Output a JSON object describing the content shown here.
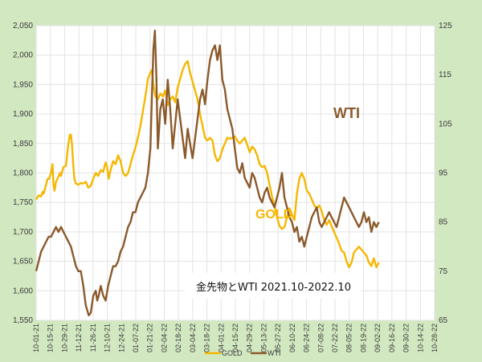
{
  "chart_data": {
    "type": "line",
    "title": "金先物とWTI 2021.10-2022.10",
    "annotations": {
      "wti": "WTI",
      "gold": "GOLD"
    },
    "x_tick_labels": [
      "10-01-21",
      "10-15-21",
      "10-29-21",
      "11-12-21",
      "11-26-21",
      "12-10-21",
      "12-24-21",
      "01-07-22",
      "01-21-22",
      "02-04-22",
      "02-18-22",
      "03-04-22",
      "03-18-22",
      "04-01-22",
      "04-15-22",
      "04-29-22",
      "05-13-22",
      "05-27-22",
      "06-10-22",
      "06-24-22",
      "07-08-22",
      "07-22-22",
      "08-05-22",
      "08-19-22",
      "09-02-22",
      "09-16-22",
      "09-30-22",
      "10-14-22",
      "10-28-22"
    ],
    "y_left": {
      "ylim": [
        1550,
        2050
      ],
      "ticks": [
        "1,550",
        "1,600",
        "1,650",
        "1,700",
        "1,750",
        "1,800",
        "1,850",
        "1,900",
        "1,950",
        "2,000",
        "2,050"
      ]
    },
    "y_right": {
      "ylim": [
        65,
        125
      ],
      "ticks": [
        "65",
        "75",
        "85",
        "95",
        "105",
        "115",
        "125"
      ]
    },
    "grid": true,
    "legend_position": "bottom",
    "series": [
      {
        "name": "GOLD",
        "axis": "left",
        "color": "#f5b700",
        "points": [
          [
            0,
            1755
          ],
          [
            0.5,
            1762
          ],
          [
            1,
            1760
          ],
          [
            1.3,
            1768
          ],
          [
            1.5,
            1765
          ],
          [
            2,
            1780
          ],
          [
            2.3,
            1790
          ],
          [
            2.6,
            1790
          ],
          [
            3,
            1800
          ],
          [
            3.3,
            1815
          ],
          [
            3.5,
            1780
          ],
          [
            3.7,
            1770
          ],
          [
            4,
            1785
          ],
          [
            4.4,
            1792
          ],
          [
            4.8,
            1800
          ],
          [
            5,
            1795
          ],
          [
            5.5,
            1810
          ],
          [
            6,
            1812
          ],
          [
            6.3,
            1835
          ],
          [
            6.5,
            1850
          ],
          [
            6.8,
            1865
          ],
          [
            7,
            1865
          ],
          [
            7.2,
            1850
          ],
          [
            7.5,
            1810
          ],
          [
            7.7,
            1790
          ],
          [
            8,
            1782
          ],
          [
            8.5,
            1780
          ],
          [
            9,
            1783
          ],
          [
            9.5,
            1782
          ],
          [
            10,
            1785
          ],
          [
            10.5,
            1775
          ],
          [
            11,
            1778
          ],
          [
            11.5,
            1790
          ],
          [
            12,
            1800
          ],
          [
            12.5,
            1795
          ],
          [
            13,
            1805
          ],
          [
            13.5,
            1802
          ],
          [
            14,
            1818
          ],
          [
            14.3,
            1810
          ],
          [
            14.6,
            1790
          ],
          [
            15,
            1805
          ],
          [
            15.5,
            1820
          ],
          [
            16,
            1815
          ],
          [
            16.5,
            1830
          ],
          [
            17,
            1820
          ],
          [
            17.5,
            1800
          ],
          [
            18,
            1795
          ],
          [
            18.5,
            1800
          ],
          [
            19,
            1815
          ],
          [
            19.5,
            1830
          ],
          [
            20,
            1843
          ],
          [
            20.5,
            1860
          ],
          [
            21,
            1880
          ],
          [
            21.5,
            1905
          ],
          [
            22,
            1930
          ],
          [
            22.5,
            1960
          ],
          [
            23,
            1970
          ],
          [
            23.3,
            1975
          ],
          [
            23.6,
            1950
          ],
          [
            24,
            1930
          ],
          [
            24.5,
            1925
          ],
          [
            25,
            1935
          ],
          [
            25.5,
            1930
          ],
          [
            26,
            1940
          ],
          [
            26.5,
            1915
          ],
          [
            27,
            1925
          ],
          [
            27.5,
            1930
          ],
          [
            28,
            1920
          ],
          [
            28.5,
            1945
          ],
          [
            29,
            1960
          ],
          [
            29.5,
            1975
          ],
          [
            30,
            1985
          ],
          [
            30.5,
            1990
          ],
          [
            31,
            1970
          ],
          [
            31.5,
            1955
          ],
          [
            32,
            1940
          ],
          [
            32.5,
            1925
          ],
          [
            33,
            1900
          ],
          [
            33.5,
            1880
          ],
          [
            34,
            1860
          ],
          [
            34.5,
            1855
          ],
          [
            35,
            1860
          ],
          [
            35.5,
            1855
          ],
          [
            36,
            1830
          ],
          [
            36.5,
            1820
          ],
          [
            37,
            1825
          ],
          [
            37.5,
            1840
          ],
          [
            38,
            1850
          ],
          [
            38.5,
            1860
          ],
          [
            39,
            1858
          ],
          [
            39.5,
            1860
          ],
          [
            40,
            1862
          ],
          [
            40.5,
            1855
          ],
          [
            41,
            1850
          ],
          [
            41.5,
            1855
          ],
          [
            42,
            1860
          ],
          [
            42.5,
            1848
          ],
          [
            43,
            1835
          ],
          [
            43.5,
            1845
          ],
          [
            44,
            1840
          ],
          [
            44.5,
            1830
          ],
          [
            45,
            1815
          ],
          [
            45.5,
            1810
          ],
          [
            46,
            1812
          ],
          [
            46.5,
            1800
          ],
          [
            47,
            1780
          ],
          [
            47.5,
            1760
          ],
          [
            48,
            1745
          ],
          [
            48.5,
            1725
          ],
          [
            49,
            1710
          ],
          [
            49.5,
            1705
          ],
          [
            50,
            1708
          ],
          [
            50.5,
            1725
          ],
          [
            51,
            1740
          ],
          [
            51.5,
            1730
          ],
          [
            52,
            1720
          ],
          [
            52.5,
            1765
          ],
          [
            53,
            1790
          ],
          [
            53.5,
            1800
          ],
          [
            54,
            1790
          ],
          [
            54.5,
            1770
          ],
          [
            55,
            1765
          ],
          [
            55.5,
            1755
          ],
          [
            56,
            1745
          ],
          [
            56.5,
            1740
          ],
          [
            57,
            1745
          ],
          [
            57.5,
            1735
          ],
          [
            58,
            1720
          ],
          [
            58.5,
            1712
          ],
          [
            59,
            1720
          ],
          [
            59.5,
            1710
          ],
          [
            60,
            1700
          ],
          [
            60.5,
            1690
          ],
          [
            61,
            1680
          ],
          [
            61.5,
            1668
          ],
          [
            62,
            1665
          ],
          [
            62.5,
            1650
          ],
          [
            63,
            1640
          ],
          [
            63.5,
            1648
          ],
          [
            64,
            1665
          ],
          [
            64.5,
            1670
          ],
          [
            65,
            1675
          ],
          [
            65.5,
            1670
          ],
          [
            66,
            1665
          ],
          [
            66.5,
            1660
          ],
          [
            67,
            1648
          ],
          [
            67.5,
            1642
          ],
          [
            68,
            1655
          ],
          [
            68.5,
            1640
          ],
          [
            69,
            1648
          ]
        ]
      },
      {
        "name": "WTI",
        "axis": "right",
        "color": "#8b5a2b",
        "points": [
          [
            0,
            75
          ],
          [
            0.5,
            77
          ],
          [
            1,
            79
          ],
          [
            1.5,
            80
          ],
          [
            2,
            81
          ],
          [
            2.5,
            82
          ],
          [
            3,
            82
          ],
          [
            3.5,
            83
          ],
          [
            4,
            84
          ],
          [
            4.5,
            83
          ],
          [
            5,
            84
          ],
          [
            5.5,
            83
          ],
          [
            6,
            82
          ],
          [
            6.5,
            81
          ],
          [
            7,
            80
          ],
          [
            7.5,
            78
          ],
          [
            8,
            76
          ],
          [
            8.5,
            75
          ],
          [
            9,
            75
          ],
          [
            9.5,
            72
          ],
          [
            10,
            68
          ],
          [
            10.3,
            67
          ],
          [
            10.6,
            66
          ],
          [
            11,
            66.5
          ],
          [
            11.5,
            70
          ],
          [
            12,
            71
          ],
          [
            12.3,
            69
          ],
          [
            12.6,
            70
          ],
          [
            13,
            72
          ],
          [
            13.5,
            70
          ],
          [
            14,
            69
          ],
          [
            14.5,
            72
          ],
          [
            15,
            74
          ],
          [
            15.5,
            76
          ],
          [
            16,
            76
          ],
          [
            16.5,
            77
          ],
          [
            17,
            79
          ],
          [
            17.5,
            80
          ],
          [
            18,
            82
          ],
          [
            18.5,
            84
          ],
          [
            19,
            85
          ],
          [
            19.5,
            87
          ],
          [
            20,
            87
          ],
          [
            20.5,
            89
          ],
          [
            21,
            90
          ],
          [
            21.5,
            91
          ],
          [
            22,
            92
          ],
          [
            22.5,
            95
          ],
          [
            23,
            100
          ],
          [
            23.3,
            110
          ],
          [
            23.6,
            120
          ],
          [
            23.9,
            124
          ],
          [
            24.2,
            115
          ],
          [
            24.5,
            100
          ],
          [
            25,
            108
          ],
          [
            25.5,
            110
          ],
          [
            26,
            105
          ],
          [
            26.5,
            114
          ],
          [
            27,
            108
          ],
          [
            27.5,
            100
          ],
          [
            28,
            105
          ],
          [
            28.5,
            110
          ],
          [
            29,
            106
          ],
          [
            29.5,
            102
          ],
          [
            30,
            98
          ],
          [
            30.5,
            104
          ],
          [
            31,
            101
          ],
          [
            31.5,
            98
          ],
          [
            32,
            102
          ],
          [
            32.5,
            106
          ],
          [
            33,
            110
          ],
          [
            33.5,
            112
          ],
          [
            34,
            109
          ],
          [
            34.5,
            114
          ],
          [
            35,
            118
          ],
          [
            35.5,
            120
          ],
          [
            36,
            121
          ],
          [
            36.5,
            118
          ],
          [
            37,
            121
          ],
          [
            37.5,
            114
          ],
          [
            38,
            112
          ],
          [
            38.5,
            108
          ],
          [
            39,
            106
          ],
          [
            39.5,
            104
          ],
          [
            40,
            100
          ],
          [
            40.5,
            96
          ],
          [
            41,
            95
          ],
          [
            41.5,
            97
          ],
          [
            42,
            94
          ],
          [
            42.5,
            93
          ],
          [
            43,
            92
          ],
          [
            43.5,
            95
          ],
          [
            44,
            94
          ],
          [
            44.5,
            92
          ],
          [
            45,
            90
          ],
          [
            45.5,
            89
          ],
          [
            46,
            91
          ],
          [
            46.5,
            92
          ],
          [
            47,
            90
          ],
          [
            47.5,
            89
          ],
          [
            48,
            88
          ],
          [
            48.5,
            90
          ],
          [
            49,
            92
          ],
          [
            49.5,
            95
          ],
          [
            50,
            90
          ],
          [
            50.5,
            88
          ],
          [
            51,
            86
          ],
          [
            51.5,
            85
          ],
          [
            52,
            83
          ],
          [
            52.5,
            84
          ],
          [
            53,
            81
          ],
          [
            53.5,
            82
          ],
          [
            54,
            80
          ],
          [
            54.5,
            82
          ],
          [
            55,
            84
          ],
          [
            55.5,
            86
          ],
          [
            56,
            87
          ],
          [
            56.5,
            88
          ],
          [
            57,
            85
          ],
          [
            57.5,
            84
          ],
          [
            58,
            85
          ],
          [
            58.5,
            86
          ],
          [
            59,
            87
          ],
          [
            59.5,
            86
          ],
          [
            60,
            85
          ],
          [
            60.5,
            84
          ],
          [
            61,
            86
          ],
          [
            61.5,
            88
          ],
          [
            62,
            90
          ],
          [
            62.5,
            89
          ],
          [
            63,
            88
          ],
          [
            63.5,
            87
          ],
          [
            64,
            86
          ],
          [
            64.5,
            85
          ],
          [
            65,
            84
          ],
          [
            65.5,
            85
          ],
          [
            66,
            87
          ],
          [
            66.5,
            85
          ],
          [
            67,
            86
          ],
          [
            67.5,
            83
          ],
          [
            68,
            85
          ],
          [
            68.5,
            84
          ],
          [
            69,
            85
          ]
        ]
      }
    ]
  }
}
